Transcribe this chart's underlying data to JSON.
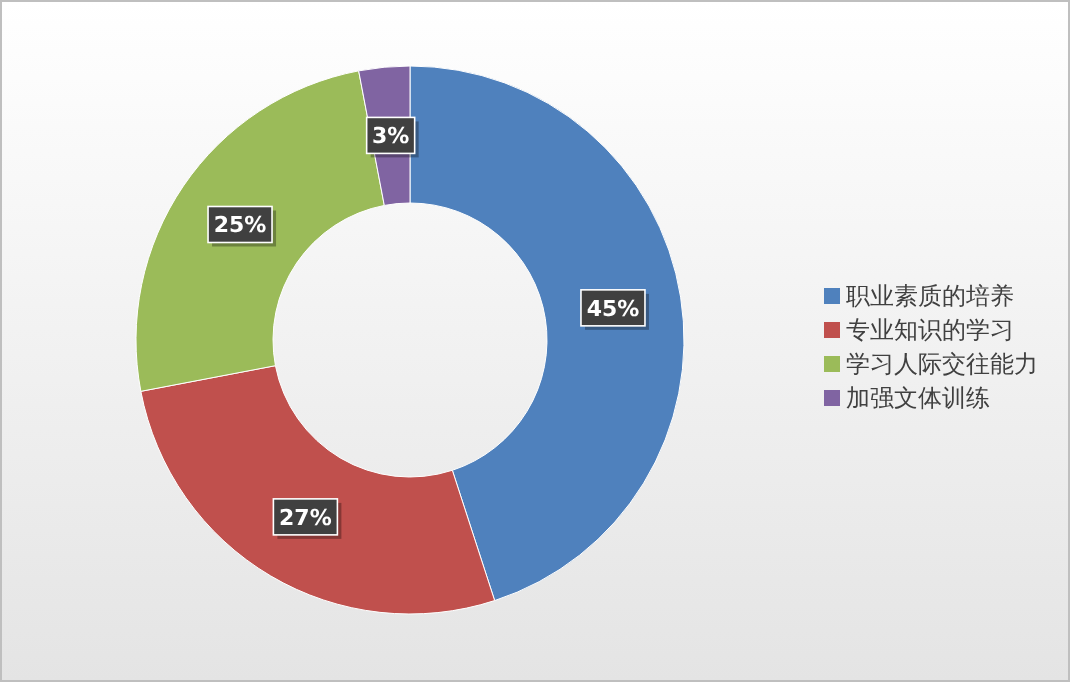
{
  "chart_data": {
    "type": "donut",
    "categories": [
      "职业素质的培养",
      "专业知识的学习",
      "学习人际交往能力",
      "加强文体训练"
    ],
    "values": [
      45,
      27,
      25,
      3
    ],
    "colors": [
      "#4f81bd",
      "#c0504d",
      "#9bbb59",
      "#8064a2"
    ],
    "value_labels": [
      "45%",
      "27%",
      "25%",
      "3%"
    ],
    "legend": "right"
  }
}
